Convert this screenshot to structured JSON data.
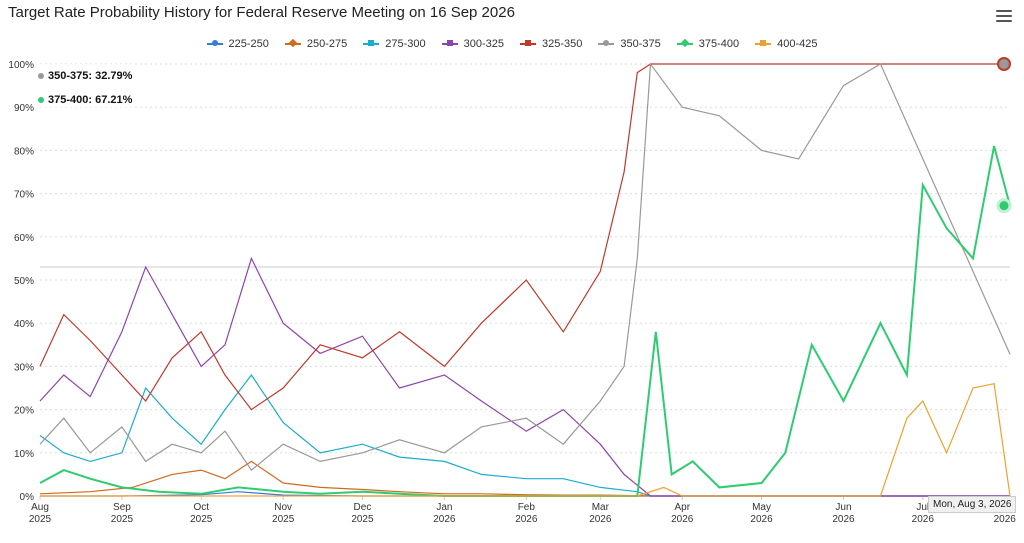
{
  "header": {
    "title": "Target Rate Probability History for Federal Reserve Meeting on 16 Sep 2026"
  },
  "tooltip": {
    "row1": "350-375: 32.79%",
    "row2": "375-400: 67.21%",
    "date": "Mon, Aug 3, 2026"
  },
  "chart_data": {
    "type": "line",
    "title": "Target Rate Probability History for Federal Reserve Meeting on 16 Sep 2026",
    "ylim": [
      0,
      100
    ],
    "y_ticks": [
      "0%",
      "10%",
      "20%",
      "30%",
      "40%",
      "50%",
      "60%",
      "70%",
      "80%",
      "90%",
      "100%"
    ],
    "x_ticks": [
      {
        "label": [
          "Aug",
          "2025"
        ],
        "date": "2025-08-01"
      },
      {
        "label": [
          "Sep",
          "2025"
        ],
        "date": "2025-09-01"
      },
      {
        "label": [
          "Oct",
          "2025"
        ],
        "date": "2025-10-01"
      },
      {
        "label": [
          "Nov",
          "2025"
        ],
        "date": "2025-11-01"
      },
      {
        "label": [
          "Dec",
          "2025"
        ],
        "date": "2025-12-01"
      },
      {
        "label": [
          "Jan",
          "2026"
        ],
        "date": "2026-01-01"
      },
      {
        "label": [
          "Feb",
          "2026"
        ],
        "date": "2026-02-01"
      },
      {
        "label": [
          "Mar",
          "2026"
        ],
        "date": "2026-03-01"
      },
      {
        "label": [
          "Apr",
          "2026"
        ],
        "date": "2026-04-01"
      },
      {
        "label": [
          "May",
          "2026"
        ],
        "date": "2026-05-01"
      },
      {
        "label": [
          "Jun",
          "2026"
        ],
        "date": "2026-06-01"
      },
      {
        "label": [
          "Jul",
          "2026"
        ],
        "date": "2026-07-01"
      },
      {
        "label": [
          "Aug",
          "2026"
        ],
        "date": "2026-08-01"
      }
    ],
    "grid": true,
    "legend": "top",
    "series": [
      {
        "name": "225-250",
        "color": "#2f7ed8",
        "marker": "circle",
        "x": [
          "2025-08-01",
          "2025-09-01",
          "2025-10-01",
          "2025-10-15",
          "2025-11-01",
          "2025-12-01",
          "2026-01-01",
          "2026-02-01",
          "2026-03-01",
          "2026-03-20",
          "2026-08-03"
        ],
        "y": [
          0,
          0,
          0.3,
          1,
          0.2,
          0,
          0,
          0,
          0,
          0,
          0
        ]
      },
      {
        "name": "250-275",
        "color": "#d2691e",
        "marker": "diamond",
        "x": [
          "2025-08-01",
          "2025-08-20",
          "2025-09-05",
          "2025-09-20",
          "2025-10-01",
          "2025-10-10",
          "2025-10-20",
          "2025-11-01",
          "2025-11-15",
          "2025-12-01",
          "2025-12-15",
          "2026-01-01",
          "2026-01-15",
          "2026-02-01",
          "2026-02-15",
          "2026-03-01",
          "2026-03-15",
          "2026-03-20",
          "2026-08-03"
        ],
        "y": [
          0.5,
          1,
          2,
          5,
          6,
          4,
          8,
          3,
          2,
          1.5,
          1,
          0.5,
          0.5,
          0.3,
          0.2,
          0.2,
          0.1,
          0,
          0
        ]
      },
      {
        "name": "275-300",
        "color": "#1aadce",
        "marker": "square",
        "x": [
          "2025-08-01",
          "2025-08-10",
          "2025-08-20",
          "2025-09-01",
          "2025-09-10",
          "2025-09-20",
          "2025-10-01",
          "2025-10-10",
          "2025-10-20",
          "2025-11-01",
          "2025-11-15",
          "2025-12-01",
          "2025-12-15",
          "2026-01-01",
          "2026-01-15",
          "2026-02-01",
          "2026-02-15",
          "2026-03-01",
          "2026-03-15",
          "2026-03-20",
          "2026-08-03"
        ],
        "y": [
          14,
          10,
          8,
          10,
          25,
          18,
          12,
          20,
          28,
          17,
          10,
          12,
          9,
          8,
          5,
          4,
          4,
          2,
          1,
          0,
          0
        ]
      },
      {
        "name": "300-325",
        "color": "#8e44ad",
        "marker": "triangle",
        "x": [
          "2025-08-01",
          "2025-08-10",
          "2025-08-20",
          "2025-09-01",
          "2025-09-10",
          "2025-09-20",
          "2025-10-01",
          "2025-10-10",
          "2025-10-20",
          "2025-11-01",
          "2025-11-15",
          "2025-12-01",
          "2025-12-15",
          "2026-01-01",
          "2026-01-15",
          "2026-02-01",
          "2026-02-15",
          "2026-03-01",
          "2026-03-10",
          "2026-03-20",
          "2026-08-03"
        ],
        "y": [
          22,
          28,
          23,
          38,
          53,
          42,
          30,
          35,
          55,
          40,
          33,
          37,
          25,
          28,
          22,
          15,
          20,
          12,
          5,
          0,
          0
        ]
      },
      {
        "name": "325-350",
        "color": "#c0392b",
        "marker": "triangle-down",
        "x": [
          "2025-08-01",
          "2025-08-10",
          "2025-08-20",
          "2025-09-01",
          "2025-09-10",
          "2025-09-20",
          "2025-10-01",
          "2025-10-10",
          "2025-10-20",
          "2025-11-01",
          "2025-11-15",
          "2025-12-01",
          "2025-12-15",
          "2026-01-01",
          "2026-01-15",
          "2026-02-01",
          "2026-02-15",
          "2026-03-01",
          "2026-03-10",
          "2026-03-15",
          "2026-03-20",
          "2026-08-03"
        ],
        "y": [
          30,
          42,
          36,
          28,
          22,
          32,
          38,
          28,
          20,
          25,
          35,
          32,
          38,
          30,
          40,
          50,
          38,
          52,
          75,
          98,
          100,
          100
        ]
      },
      {
        "name": "350-375",
        "color": "#999999",
        "marker": "circle",
        "x": [
          "2025-08-01",
          "2025-08-10",
          "2025-08-20",
          "2025-09-01",
          "2025-09-10",
          "2025-09-20",
          "2025-10-01",
          "2025-10-10",
          "2025-10-20",
          "2025-11-01",
          "2025-11-15",
          "2025-12-01",
          "2025-12-15",
          "2026-01-01",
          "2026-01-15",
          "2026-02-01",
          "2026-02-15",
          "2026-03-01",
          "2026-03-10",
          "2026-03-15",
          "2026-03-20",
          "2026-04-01",
          "2026-04-15",
          "2026-05-01",
          "2026-05-15",
          "2026-06-01",
          "2026-06-15",
          "2026-08-03"
        ],
        "y": [
          12,
          18,
          10,
          16,
          8,
          12,
          10,
          15,
          6,
          12,
          8,
          10,
          13,
          10,
          16,
          18,
          12,
          22,
          30,
          55,
          100,
          90,
          88,
          80,
          78,
          95,
          100,
          32.79
        ]
      },
      {
        "name": "375-400",
        "color": "#2ecc71",
        "marker": "diamond",
        "x": [
          "2025-08-01",
          "2025-08-10",
          "2025-08-20",
          "2025-09-01",
          "2025-09-15",
          "2025-10-01",
          "2025-10-15",
          "2025-11-01",
          "2025-11-15",
          "2025-12-01",
          "2025-12-15",
          "2026-01-01",
          "2026-03-15",
          "2026-03-22",
          "2026-03-28",
          "2026-04-05",
          "2026-04-15",
          "2026-05-01",
          "2026-05-10",
          "2026-05-20",
          "2026-06-01",
          "2026-06-15",
          "2026-06-25",
          "2026-07-01",
          "2026-07-10",
          "2026-07-20",
          "2026-07-28",
          "2026-08-03"
        ],
        "y": [
          3,
          6,
          4,
          2,
          1,
          0.5,
          2,
          1,
          0.5,
          1,
          0.5,
          0,
          0,
          38,
          5,
          8,
          2,
          3,
          10,
          35,
          22,
          40,
          28,
          72,
          62,
          55,
          81,
          67.21
        ]
      },
      {
        "name": "400-425",
        "color": "#f0a030",
        "marker": "square",
        "x": [
          "2025-08-01",
          "2026-03-15",
          "2026-03-25",
          "2026-04-01",
          "2026-06-15",
          "2026-06-25",
          "2026-07-01",
          "2026-07-10",
          "2026-07-20",
          "2026-07-28",
          "2026-08-03"
        ],
        "y": [
          0,
          0,
          2,
          0,
          0,
          18,
          22,
          10,
          25,
          26,
          0
        ]
      }
    ]
  }
}
